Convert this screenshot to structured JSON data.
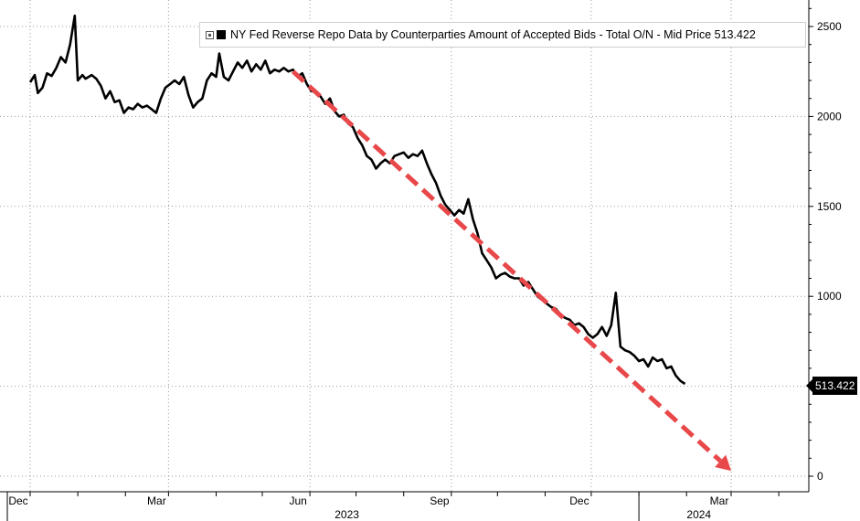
{
  "chart_data": {
    "type": "line",
    "title": "",
    "xlabel": "",
    "ylabel": "",
    "ylim": [
      0,
      2600
    ],
    "y_ticks": [
      0,
      500,
      1000,
      1500,
      2000,
      2500
    ],
    "y_axis_side": "right",
    "grid": true,
    "legend": {
      "placement": "top",
      "label": "NY Fed Reverse Repo Data by Counterparties Amount of Accepted Bids - Total O/N - Mid Price 513.422"
    },
    "last_value_label": "513.422",
    "x_range": [
      "2022-12-01",
      "2024-05-01"
    ],
    "x_ticks": [
      {
        "label": "Dec",
        "date": "2022-12-01"
      },
      {
        "label": "Mar",
        "date": "2023-03-01"
      },
      {
        "label": "Jun",
        "date": "2023-06-01"
      },
      {
        "label": "Sep",
        "date": "2023-09-01"
      },
      {
        "label": "Dec",
        "date": "2023-12-01"
      },
      {
        "label": "Mar",
        "date": "2024-03-01"
      }
    ],
    "year_labels": [
      {
        "label": "2023",
        "date": "2023-07-01"
      },
      {
        "label": "2024",
        "date": "2024-02-15"
      }
    ],
    "series": [
      {
        "color": "#000000",
        "points": [
          [
            "2022-12-01",
            2190
          ],
          [
            "2022-12-04",
            2230
          ],
          [
            "2022-12-06",
            2130
          ],
          [
            "2022-12-09",
            2160
          ],
          [
            "2022-12-12",
            2240
          ],
          [
            "2022-12-15",
            2225
          ],
          [
            "2022-12-18",
            2270
          ],
          [
            "2022-12-21",
            2330
          ],
          [
            "2022-12-24",
            2300
          ],
          [
            "2022-12-27",
            2400
          ],
          [
            "2022-12-30",
            2560
          ],
          [
            "2023-01-01",
            2200
          ],
          [
            "2023-01-04",
            2230
          ],
          [
            "2023-01-06",
            2210
          ],
          [
            "2023-01-10",
            2230
          ],
          [
            "2023-01-13",
            2210
          ],
          [
            "2023-01-16",
            2170
          ],
          [
            "2023-01-19",
            2100
          ],
          [
            "2023-01-22",
            2140
          ],
          [
            "2023-01-25",
            2080
          ],
          [
            "2023-01-28",
            2090
          ],
          [
            "2023-01-31",
            2020
          ],
          [
            "2023-02-03",
            2050
          ],
          [
            "2023-02-06",
            2040
          ],
          [
            "2023-02-09",
            2070
          ],
          [
            "2023-02-12",
            2050
          ],
          [
            "2023-02-15",
            2060
          ],
          [
            "2023-02-18",
            2040
          ],
          [
            "2023-02-21",
            2020
          ],
          [
            "2023-02-24",
            2100
          ],
          [
            "2023-02-27",
            2160
          ],
          [
            "2023-03-02",
            2180
          ],
          [
            "2023-03-05",
            2200
          ],
          [
            "2023-03-08",
            2180
          ],
          [
            "2023-03-11",
            2220
          ],
          [
            "2023-03-14",
            2120
          ],
          [
            "2023-03-17",
            2050
          ],
          [
            "2023-03-20",
            2080
          ],
          [
            "2023-03-23",
            2100
          ],
          [
            "2023-03-26",
            2200
          ],
          [
            "2023-03-29",
            2240
          ],
          [
            "2023-04-01",
            2220
          ],
          [
            "2023-04-03",
            2350
          ],
          [
            "2023-04-06",
            2220
          ],
          [
            "2023-04-09",
            2200
          ],
          [
            "2023-04-12",
            2250
          ],
          [
            "2023-04-15",
            2300
          ],
          [
            "2023-04-18",
            2270
          ],
          [
            "2023-04-21",
            2310
          ],
          [
            "2023-04-24",
            2250
          ],
          [
            "2023-04-27",
            2290
          ],
          [
            "2023-04-30",
            2260
          ],
          [
            "2023-05-03",
            2310
          ],
          [
            "2023-05-06",
            2240
          ],
          [
            "2023-05-09",
            2260
          ],
          [
            "2023-05-12",
            2250
          ],
          [
            "2023-05-15",
            2270
          ],
          [
            "2023-05-18",
            2250
          ],
          [
            "2023-05-21",
            2260
          ],
          [
            "2023-05-24",
            2220
          ],
          [
            "2023-05-27",
            2240
          ],
          [
            "2023-05-30",
            2180
          ],
          [
            "2023-06-02",
            2140
          ],
          [
            "2023-06-05",
            2140
          ],
          [
            "2023-06-08",
            2110
          ],
          [
            "2023-06-11",
            2070
          ],
          [
            "2023-06-14",
            2100
          ],
          [
            "2023-06-17",
            2030
          ],
          [
            "2023-06-20",
            2000
          ],
          [
            "2023-06-23",
            2010
          ],
          [
            "2023-06-26",
            1960
          ],
          [
            "2023-06-29",
            1940
          ],
          [
            "2023-07-02",
            1880
          ],
          [
            "2023-07-05",
            1840
          ],
          [
            "2023-07-08",
            1780
          ],
          [
            "2023-07-11",
            1760
          ],
          [
            "2023-07-14",
            1710
          ],
          [
            "2023-07-17",
            1740
          ],
          [
            "2023-07-20",
            1760
          ],
          [
            "2023-07-23",
            1740
          ],
          [
            "2023-07-26",
            1780
          ],
          [
            "2023-07-29",
            1790
          ],
          [
            "2023-08-01",
            1800
          ],
          [
            "2023-08-04",
            1770
          ],
          [
            "2023-08-07",
            1790
          ],
          [
            "2023-08-10",
            1780
          ],
          [
            "2023-08-13",
            1810
          ],
          [
            "2023-08-16",
            1740
          ],
          [
            "2023-08-19",
            1680
          ],
          [
            "2023-08-22",
            1630
          ],
          [
            "2023-08-25",
            1560
          ],
          [
            "2023-08-28",
            1510
          ],
          [
            "2023-08-31",
            1480
          ],
          [
            "2023-09-03",
            1450
          ],
          [
            "2023-09-06",
            1480
          ],
          [
            "2023-09-09",
            1460
          ],
          [
            "2023-09-12",
            1540
          ],
          [
            "2023-09-15",
            1430
          ],
          [
            "2023-09-18",
            1350
          ],
          [
            "2023-09-21",
            1240
          ],
          [
            "2023-09-24",
            1200
          ],
          [
            "2023-09-27",
            1160
          ],
          [
            "2023-09-30",
            1100
          ],
          [
            "2023-10-03",
            1120
          ],
          [
            "2023-10-06",
            1130
          ],
          [
            "2023-10-09",
            1110
          ],
          [
            "2023-10-12",
            1100
          ],
          [
            "2023-10-15",
            1100
          ],
          [
            "2023-10-18",
            1060
          ],
          [
            "2023-10-21",
            1080
          ],
          [
            "2023-10-24",
            1040
          ],
          [
            "2023-10-27",
            1000
          ],
          [
            "2023-10-30",
            980
          ],
          [
            "2023-11-02",
            960
          ],
          [
            "2023-11-05",
            940
          ],
          [
            "2023-11-08",
            930
          ],
          [
            "2023-11-11",
            900
          ],
          [
            "2023-11-14",
            880
          ],
          [
            "2023-11-17",
            870
          ],
          [
            "2023-11-20",
            840
          ],
          [
            "2023-11-23",
            850
          ],
          [
            "2023-11-26",
            830
          ],
          [
            "2023-11-29",
            790
          ],
          [
            "2023-12-02",
            770
          ],
          [
            "2023-12-05",
            790
          ],
          [
            "2023-12-08",
            830
          ],
          [
            "2023-12-11",
            780
          ],
          [
            "2023-12-14",
            840
          ],
          [
            "2023-12-17",
            1020
          ],
          [
            "2023-12-20",
            720
          ],
          [
            "2023-12-23",
            700
          ],
          [
            "2023-12-26",
            690
          ],
          [
            "2023-12-29",
            670
          ],
          [
            "2024-01-01",
            640
          ],
          [
            "2024-01-04",
            650
          ],
          [
            "2024-01-07",
            610
          ],
          [
            "2024-01-10",
            660
          ],
          [
            "2024-01-13",
            640
          ],
          [
            "2024-01-16",
            650
          ],
          [
            "2024-01-19",
            600
          ],
          [
            "2024-01-22",
            610
          ],
          [
            "2024-01-25",
            560
          ],
          [
            "2024-01-28",
            530
          ],
          [
            "2024-01-31",
            513.422
          ]
        ]
      }
    ],
    "annotations": [
      {
        "type": "arrow",
        "color": "#e8484a",
        "style": "dashed",
        "from": {
          "date": "2023-05-21",
          "value": 2250
        },
        "to": {
          "date": "2024-03-01",
          "value": 30
        }
      }
    ]
  }
}
